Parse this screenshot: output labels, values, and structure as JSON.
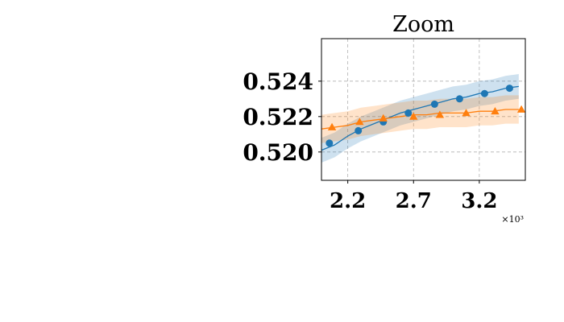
{
  "chart_data": {
    "type": "line",
    "title": "Zoom",
    "xlabel": "",
    "ylabel": "",
    "x_scale_label": "×10³",
    "xlim": [
      2.0,
      3.55
    ],
    "ylim": [
      0.5184,
      0.5264
    ],
    "x_ticks": [
      2.2,
      2.7,
      3.2
    ],
    "x_tick_labels": [
      "2.2",
      "2.7",
      "3.2"
    ],
    "y_ticks": [
      0.52,
      0.522,
      0.524
    ],
    "y_tick_labels": [
      "0.520",
      "0.522",
      "0.524"
    ],
    "grid": true,
    "legend": "none",
    "series": [
      {
        "color": "#1f77b4",
        "marker": "circle",
        "x": [
          2.0,
          2.1,
          2.2,
          2.3,
          2.4,
          2.5,
          2.6,
          2.7,
          2.8,
          2.9,
          3.0,
          3.1,
          3.2,
          3.3,
          3.4,
          3.5
        ],
        "y": [
          0.5201,
          0.5204,
          0.5209,
          0.5213,
          0.5216,
          0.5219,
          0.5222,
          0.5224,
          0.5226,
          0.5228,
          0.523,
          0.5231,
          0.5233,
          0.5234,
          0.5236,
          0.5237
        ],
        "band": 0.0007,
        "marker_x": [
          2.06,
          2.28,
          2.47,
          2.66,
          2.86,
          3.05,
          3.24,
          3.43
        ],
        "marker_y": [
          0.5205,
          0.5212,
          0.5217,
          0.5222,
          0.5227,
          0.523,
          0.5233,
          0.5236
        ]
      },
      {
        "color": "#ff7f0e",
        "marker": "triangle",
        "x": [
          2.0,
          2.1,
          2.2,
          2.3,
          2.4,
          2.5,
          2.6,
          2.7,
          2.8,
          2.9,
          3.0,
          3.1,
          3.2,
          3.3,
          3.4,
          3.5
        ],
        "y": [
          0.5213,
          0.5214,
          0.5215,
          0.5217,
          0.5218,
          0.5219,
          0.522,
          0.5221,
          0.5221,
          0.5222,
          0.5222,
          0.5222,
          0.5223,
          0.5223,
          0.5224,
          0.5224
        ],
        "band": 0.0008,
        "marker_x": [
          2.08,
          2.29,
          2.47,
          2.7,
          2.9,
          3.1,
          3.32,
          3.52
        ],
        "marker_y": [
          0.5214,
          0.5217,
          0.5219,
          0.522,
          0.5221,
          0.5222,
          0.5223,
          0.5224
        ]
      }
    ]
  }
}
